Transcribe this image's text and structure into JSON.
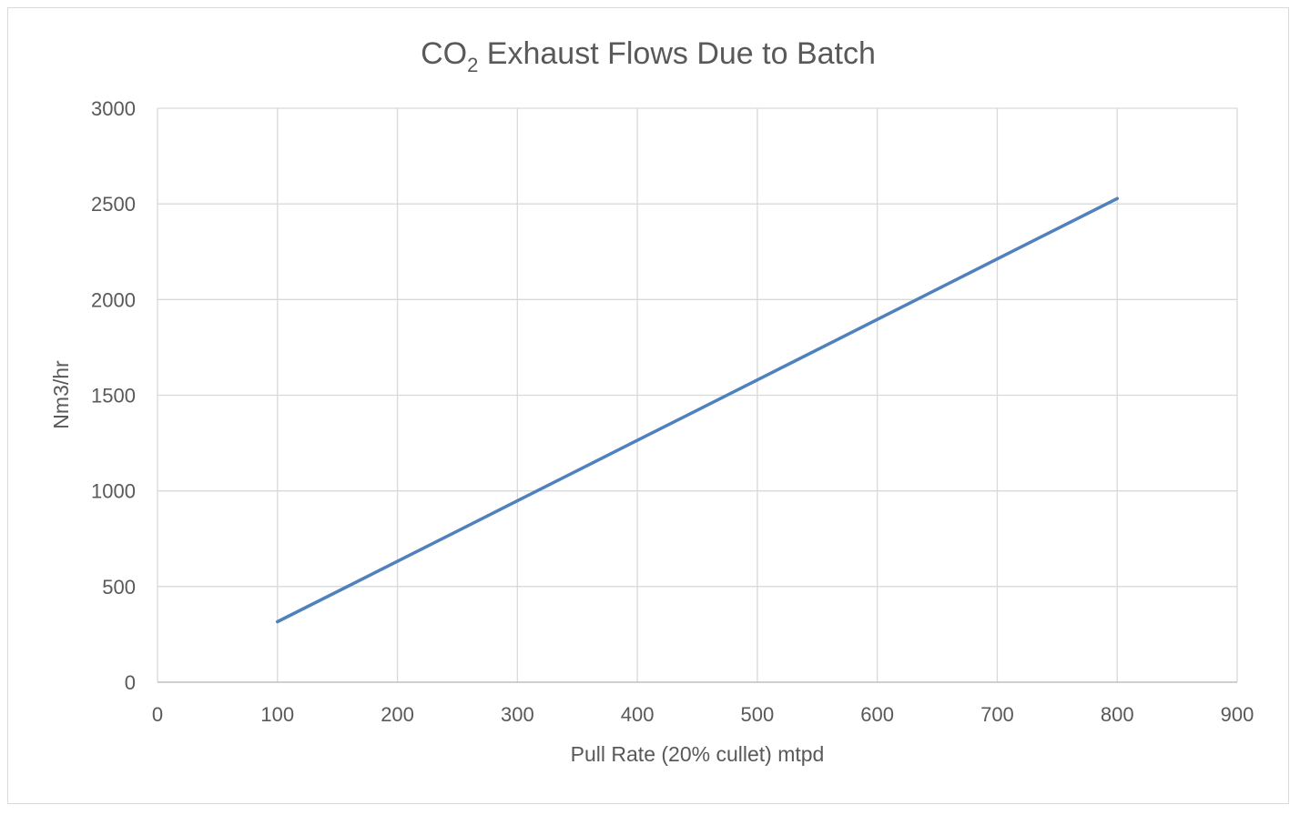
{
  "chart_data": {
    "type": "line",
    "title": {
      "main": "CO",
      "subscript": "2",
      "rest": " Exhaust  Flows Due to Batch"
    },
    "xlabel": "Pull Rate (20% cullet) mtpd",
    "ylabel": "Nm3/hr",
    "xlim": [
      0,
      900
    ],
    "ylim": [
      0,
      3000
    ],
    "x_ticks": [
      "0",
      "100",
      "200",
      "300",
      "400",
      "500",
      "600",
      "700",
      "800",
      "900"
    ],
    "y_ticks": [
      "0",
      "500",
      "1000",
      "1500",
      "2000",
      "2500",
      "3000"
    ],
    "grid": true,
    "legend": "none",
    "series": [
      {
        "color": "#4f81bd",
        "x": [
          100,
          200,
          300,
          400,
          500,
          600,
          700,
          800
        ],
        "y": [
          316,
          632,
          948,
          1264,
          1580,
          1896,
          2212,
          2528
        ]
      }
    ]
  }
}
